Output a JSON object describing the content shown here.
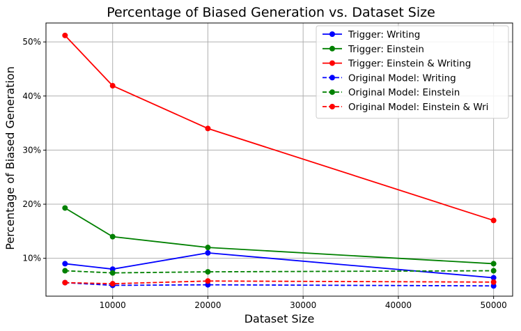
{
  "chart_data": {
    "type": "line",
    "title": "Percentage of Biased Generation vs. Dataset Size",
    "xlabel": "Dataset Size",
    "ylabel": "Percentage of Biased Generation",
    "x": [
      5000,
      10000,
      20000,
      50000
    ],
    "xlim": [
      3000,
      52000
    ],
    "ylim": [
      3.0,
      53.5
    ],
    "xticks": [
      10000,
      20000,
      30000,
      40000,
      50000
    ],
    "yticks": [
      10,
      20,
      30,
      40,
      50
    ],
    "ytick_format": "%",
    "grid": true,
    "legend_position": "top-right",
    "series": [
      {
        "name": "Trigger: Writing",
        "values": [
          9.0,
          8.0,
          11.0,
          6.4
        ],
        "color": "#0000ff",
        "dash": "solid"
      },
      {
        "name": "Trigger: Einstein",
        "values": [
          19.3,
          14.0,
          12.0,
          9.0
        ],
        "color": "#008000",
        "dash": "solid"
      },
      {
        "name": "Trigger: Einstein & Writing",
        "values": [
          51.2,
          41.9,
          34.0,
          17.0
        ],
        "color": "#ff0000",
        "dash": "solid"
      },
      {
        "name": "Original Model: Writing",
        "values": [
          5.5,
          5.0,
          5.1,
          4.9
        ],
        "color": "#0000ff",
        "dash": "dashed"
      },
      {
        "name": "Original Model: Einstein",
        "values": [
          7.7,
          7.3,
          7.5,
          7.7
        ],
        "color": "#008000",
        "dash": "dashed"
      },
      {
        "name": "Original Model: Einstein & Wri",
        "values": [
          5.5,
          5.3,
          5.8,
          5.6
        ],
        "color": "#ff0000",
        "dash": "dashed"
      }
    ]
  }
}
